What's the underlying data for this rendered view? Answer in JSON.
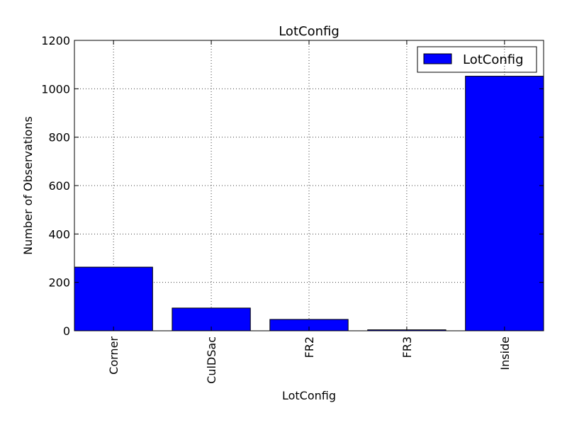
{
  "chart_data": {
    "type": "bar",
    "title": "LotConfig",
    "xlabel": "LotConfig",
    "ylabel": "Number of Observations",
    "categories": [
      "Corner",
      "CulDSac",
      "FR2",
      "FR3",
      "Inside"
    ],
    "series": [
      {
        "name": "LotConfig",
        "values": [
          263,
          94,
          47,
          4,
          1052
        ],
        "color": "#0000ff"
      }
    ],
    "ylim": [
      0,
      1200
    ],
    "yticks": [
      0,
      200,
      400,
      600,
      800,
      1000,
      1200
    ],
    "grid": true,
    "legend_position": "top-right",
    "x_tick_rotation": "vertical"
  }
}
